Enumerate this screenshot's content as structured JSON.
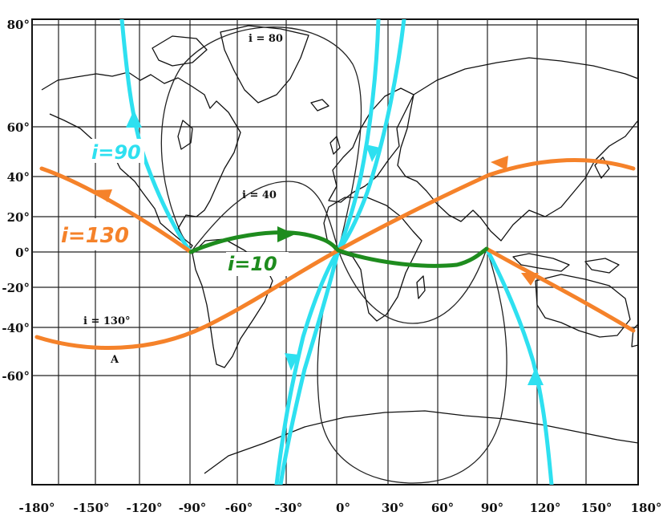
{
  "map": {
    "lat_ticks": [
      "80°",
      "60°",
      "40°",
      "20°",
      "0°",
      "-20°",
      "-40°",
      "-60°"
    ],
    "lon_ticks": [
      "-180°",
      "-150°",
      "-120°",
      "-90°",
      "-60°",
      "-30°",
      "0°",
      "30°",
      "60°",
      "90°",
      "120°",
      "150°",
      "180°"
    ],
    "printed_labels": {
      "i80": "i = 80",
      "i40": "i = 40",
      "i130": "i = 130°",
      "a": "A"
    },
    "handwritten_labels": {
      "i90": "i=90",
      "i130": "i=130",
      "i10": "i=10"
    },
    "colors": {
      "i90_track": "#2ee0f0",
      "i130_track": "#f5822a",
      "i10_track": "#1e8c1e",
      "printed_track": "#222222",
      "grid": "#222222"
    }
  }
}
